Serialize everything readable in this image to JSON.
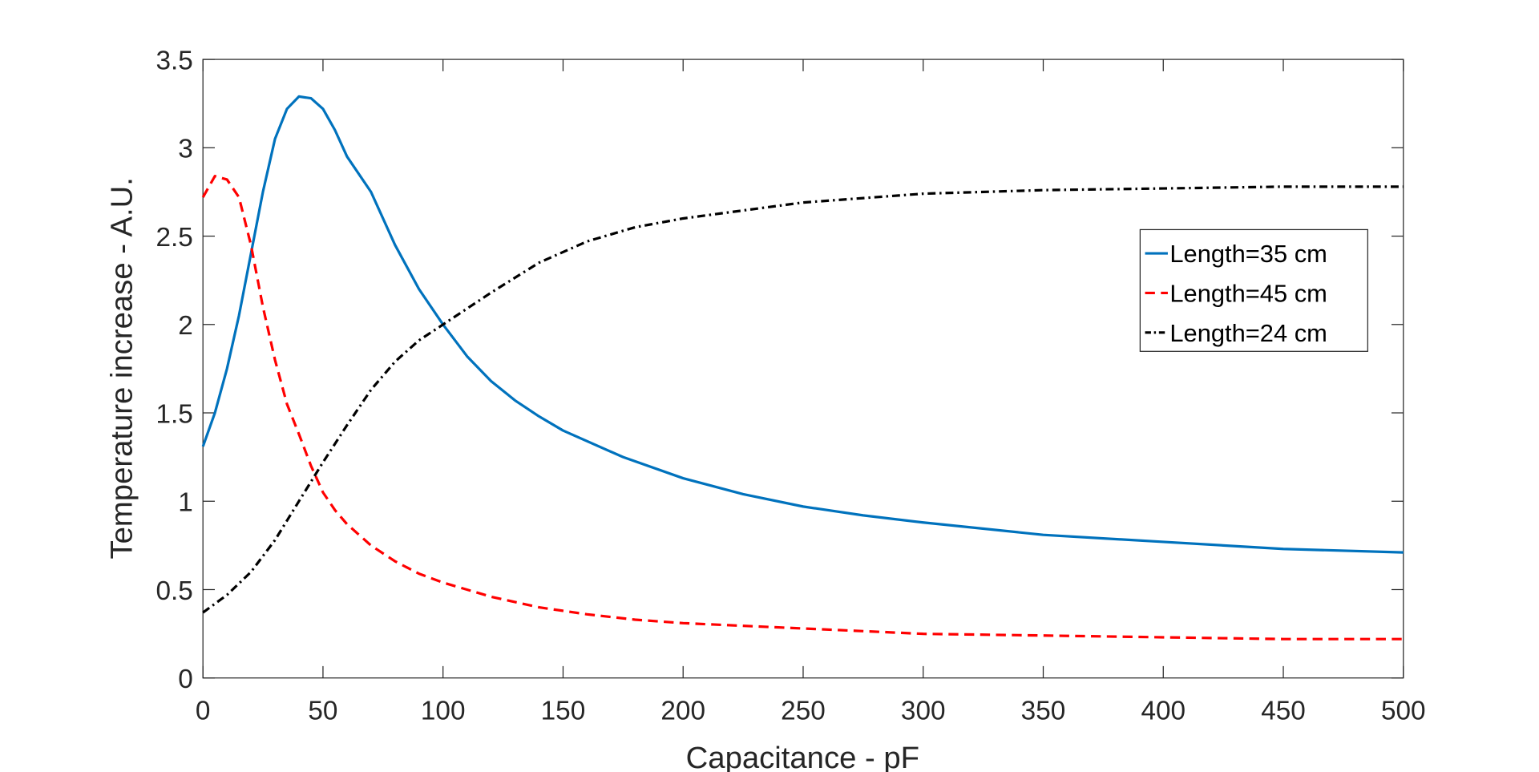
{
  "chart_data": {
    "type": "line",
    "title": "",
    "xlabel": "Capacitance - pF",
    "ylabel": "Temperature increase - A.U.",
    "xlim": [
      0,
      500
    ],
    "ylim": [
      0,
      3.5
    ],
    "xticks": [
      "0",
      "50",
      "100",
      "150",
      "200",
      "250",
      "300",
      "350",
      "400",
      "450",
      "500"
    ],
    "yticks": [
      "0",
      "0.5",
      "1",
      "1.5",
      "2",
      "2.5",
      "3",
      "3.5"
    ],
    "grid": false,
    "legend_placement": "right",
    "series": [
      {
        "name": "Length=35 cm",
        "color": "#0072BD",
        "style": "solid",
        "x": [
          0,
          5,
          10,
          15,
          20,
          25,
          30,
          35,
          40,
          45,
          50,
          55,
          60,
          70,
          80,
          90,
          100,
          110,
          120,
          130,
          140,
          150,
          175,
          200,
          225,
          250,
          275,
          300,
          350,
          400,
          450,
          500
        ],
        "y": [
          1.31,
          1.5,
          1.75,
          2.05,
          2.4,
          2.75,
          3.05,
          3.22,
          3.29,
          3.28,
          3.22,
          3.1,
          2.95,
          2.75,
          2.45,
          2.2,
          2.0,
          1.82,
          1.68,
          1.57,
          1.48,
          1.4,
          1.25,
          1.13,
          1.04,
          0.97,
          0.92,
          0.88,
          0.81,
          0.77,
          0.73,
          0.71
        ]
      },
      {
        "name": "Length=45 cm",
        "color": "#FF0000",
        "style": "dashed",
        "x": [
          0,
          5,
          10,
          15,
          20,
          25,
          30,
          35,
          40,
          45,
          50,
          55,
          60,
          70,
          80,
          90,
          100,
          120,
          140,
          160,
          180,
          200,
          250,
          300,
          350,
          400,
          450,
          500
        ],
        "y": [
          2.72,
          2.84,
          2.82,
          2.72,
          2.45,
          2.1,
          1.8,
          1.55,
          1.38,
          1.2,
          1.05,
          0.95,
          0.87,
          0.75,
          0.66,
          0.59,
          0.54,
          0.46,
          0.4,
          0.36,
          0.33,
          0.31,
          0.28,
          0.25,
          0.24,
          0.23,
          0.22,
          0.22
        ]
      },
      {
        "name": "Length=24 cm",
        "color": "#000000",
        "style": "dashdot",
        "x": [
          0,
          10,
          20,
          30,
          40,
          50,
          60,
          70,
          80,
          90,
          100,
          120,
          140,
          160,
          180,
          200,
          250,
          300,
          350,
          400,
          450,
          500
        ],
        "y": [
          0.37,
          0.47,
          0.6,
          0.78,
          1.0,
          1.22,
          1.43,
          1.63,
          1.79,
          1.91,
          2.0,
          2.18,
          2.35,
          2.47,
          2.55,
          2.6,
          2.69,
          2.74,
          2.76,
          2.77,
          2.78,
          2.78
        ]
      }
    ]
  }
}
